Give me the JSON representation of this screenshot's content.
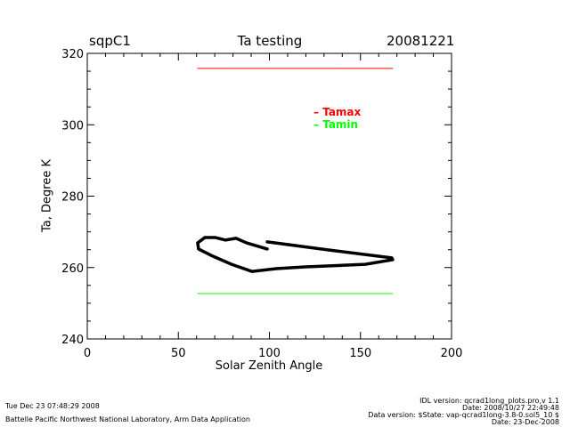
{
  "header": {
    "site": "sqpC1",
    "date": "20081221"
  },
  "footer": {
    "timestamp": "Tue Dec 23 07:48:29 2008",
    "organization": "Battelle Pacific Northwest National Laboratory, Arm Data Application",
    "idl_version": "IDL version: qcrad1long_plots.pro,v 1.1",
    "idl_date": "Date: 2008/10/27 22:49:48",
    "data_version": "Data version: $State: vap-qcrad1long-3.8-0.sol5_10 $",
    "data_date": "Date: 23-Dec-2008"
  },
  "chart_data": {
    "type": "line",
    "title": "Ta testing",
    "xlabel": "Solar Zenith Angle",
    "ylabel": "Ta, Degree K",
    "xlim": [
      0,
      200
    ],
    "ylim": [
      240,
      320
    ],
    "xticks": [
      "0",
      "50",
      "100",
      "150",
      "200"
    ],
    "yticks": [
      "240",
      "260",
      "280",
      "300",
      "320"
    ],
    "legend_placement": "top-right",
    "series": [
      {
        "name": "Tamax",
        "color": "#ff0000",
        "x": [
          60.6,
          167.7
        ],
        "y": [
          315.8,
          315.8
        ]
      },
      {
        "name": "Tamin",
        "color": "#00ff00",
        "x": [
          60.6,
          167.7
        ],
        "y": [
          252.7,
          252.7
        ]
      },
      {
        "name": "",
        "color": "#000000",
        "x": [
          98.8,
          133.0,
          167.2,
          167.7,
          152.6,
          119.8,
          103.7,
          90.5,
          79.2,
          68.0,
          61.1,
          60.6,
          64.5,
          70.4,
          75.8,
          81.7,
          87.5,
          98.8
        ],
        "y": [
          267.2,
          264.9,
          262.7,
          262.2,
          260.9,
          260.2,
          259.7,
          258.9,
          260.9,
          263.4,
          265.2,
          266.9,
          268.4,
          268.4,
          267.7,
          268.2,
          266.9,
          265.2
        ]
      }
    ]
  }
}
